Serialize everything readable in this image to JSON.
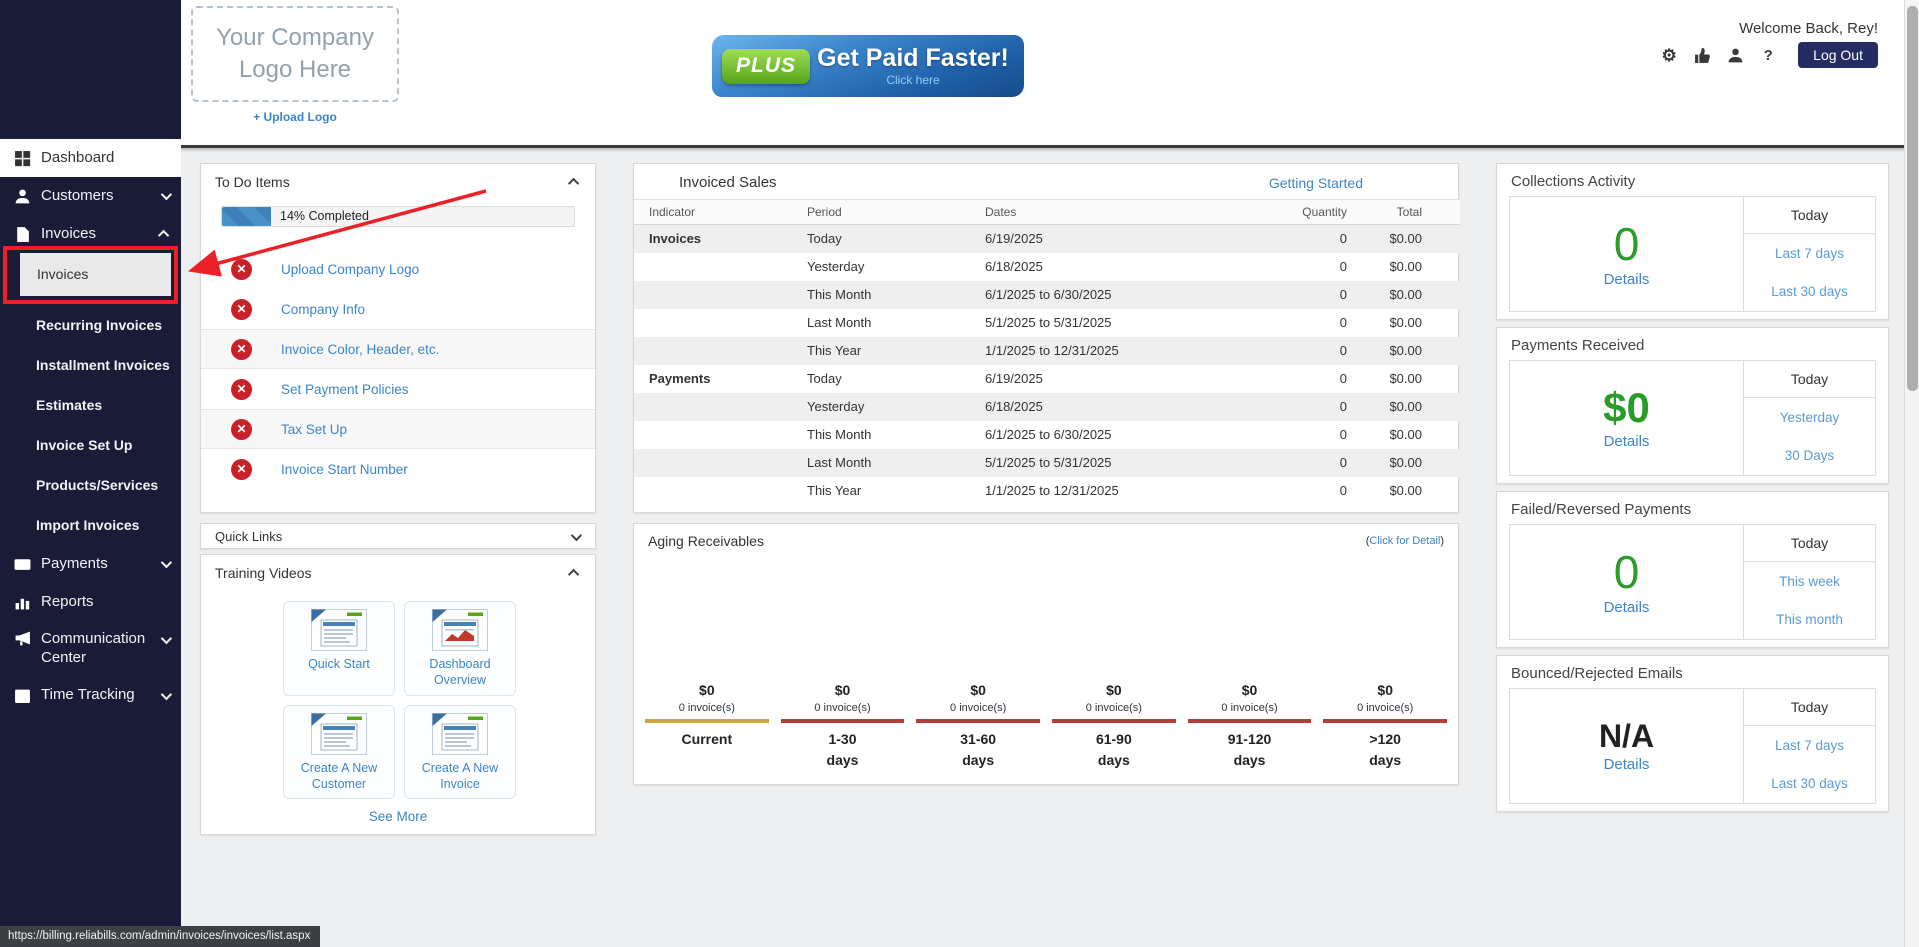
{
  "colors": {
    "sidebar_bg": "#1a1c37",
    "accent_link": "#3d85c6",
    "green_value": "#2a9c2a",
    "red_annotation": "#ec2027",
    "incomplete_icon": "#cb2027",
    "logout_bg": "#252c62",
    "progress_fill": "#4a90c9",
    "aging_current_bar": "#c7a83c",
    "aging_overdue_bar": "#b23f3f",
    "banner_blue": "#1d5ea6",
    "banner_green": "#57a417"
  },
  "status_url": "https://billing.reliabills.com/admin/invoices/invoices/list.aspx",
  "sidebar": {
    "menu": [
      {
        "label": "Dashboard",
        "icon": "dashboard",
        "active": true
      },
      {
        "label": "Customers",
        "icon": "user",
        "chevron": "down"
      },
      {
        "label": "Invoices",
        "icon": "file",
        "chevron": "up"
      },
      {
        "label": "Payments",
        "icon": "card",
        "chevron": "down"
      },
      {
        "label": "Reports",
        "icon": "chart"
      },
      {
        "label": "Communication Center",
        "icon": "megaphone",
        "chevron": "down",
        "wrap": true
      },
      {
        "label": "Time Tracking",
        "icon": "calendar",
        "chevron": "down"
      }
    ],
    "invoices_submenu": {
      "selected_index": 0,
      "items": [
        "Invoices",
        "Recurring Invoices",
        "Installment Invoices",
        "Estimates",
        "Invoice Set Up",
        "Products/Services",
        "Import Invoices"
      ]
    }
  },
  "header": {
    "logo_placeholder": "Your Company Logo Here",
    "upload_logo": "+ Upload Logo",
    "banner": {
      "badge": "PLUS",
      "title": "Get Paid Faster!",
      "subtitle": "Click here"
    },
    "welcome": "Welcome Back, Rey!",
    "tool_icons": [
      "gear",
      "thumbs-up",
      "user",
      "help"
    ],
    "logout": "Log Out"
  },
  "todo": {
    "title": "To Do Items",
    "progress_pct": 14,
    "progress_label": "14% Completed",
    "items": [
      "Upload Company Logo",
      "Company Info",
      "Invoice Color, Header, etc.",
      "Set Payment Policies",
      "Tax Set Up",
      "Invoice Start Number"
    ],
    "alt_rows": [
      2,
      4
    ]
  },
  "quick_links": {
    "title": "Quick Links"
  },
  "training": {
    "title": "Training Videos",
    "videos": [
      {
        "label": "Quick Start",
        "thumb": "page"
      },
      {
        "label": "Dashboard Overview",
        "thumb": "chart"
      },
      {
        "label": "Create A New Customer",
        "thumb": "page"
      },
      {
        "label": "Create A New Invoice",
        "thumb": "page"
      }
    ],
    "see_more": "See More"
  },
  "invoiced_sales": {
    "title": "Invoiced Sales",
    "link": "Getting Started",
    "columns": [
      "Indicator",
      "Period",
      "Dates",
      "Quantity",
      "Total"
    ],
    "rows": [
      {
        "indicator": "Invoices",
        "period": "Today",
        "dates": "6/19/2025",
        "quantity": "0",
        "total": "$0.00"
      },
      {
        "indicator": "",
        "period": "Yesterday",
        "dates": "6/18/2025",
        "quantity": "0",
        "total": "$0.00"
      },
      {
        "indicator": "",
        "period": "This Month",
        "dates": "6/1/2025 to 6/30/2025",
        "quantity": "0",
        "total": "$0.00"
      },
      {
        "indicator": "",
        "period": "Last Month",
        "dates": "5/1/2025 to 5/31/2025",
        "quantity": "0",
        "total": "$0.00"
      },
      {
        "indicator": "",
        "period": "This Year",
        "dates": "1/1/2025 to 12/31/2025",
        "quantity": "0",
        "total": "$0.00"
      },
      {
        "indicator": "Payments",
        "period": "Today",
        "dates": "6/19/2025",
        "quantity": "0",
        "total": "$0.00"
      },
      {
        "indicator": "",
        "period": "Yesterday",
        "dates": "6/18/2025",
        "quantity": "0",
        "total": "$0.00"
      },
      {
        "indicator": "",
        "period": "This Month",
        "dates": "6/1/2025 to 6/30/2025",
        "quantity": "0",
        "total": "$0.00"
      },
      {
        "indicator": "",
        "period": "Last Month",
        "dates": "5/1/2025 to 5/31/2025",
        "quantity": "0",
        "total": "$0.00"
      },
      {
        "indicator": "",
        "period": "This Year",
        "dates": "1/1/2025 to 12/31/2025",
        "quantity": "0",
        "total": "$0.00"
      }
    ]
  },
  "aging": {
    "title": "Aging Receivables",
    "link_wrap_open": "(",
    "link_label": "Click for Detail",
    "link_wrap_close": ")",
    "buckets": [
      {
        "amount": "$0",
        "count": "0 invoice(s)",
        "label": "Current",
        "bar_color": "#c7a83c"
      },
      {
        "amount": "$0",
        "count": "0 invoice(s)",
        "label": "1-30\ndays",
        "bar_color": "#b23f3f"
      },
      {
        "amount": "$0",
        "count": "0 invoice(s)",
        "label": "31-60\ndays",
        "bar_color": "#b23f3f"
      },
      {
        "amount": "$0",
        "count": "0 invoice(s)",
        "label": "61-90\ndays",
        "bar_color": "#b23f3f"
      },
      {
        "amount": "$0",
        "count": "0 invoice(s)",
        "label": "91-120\ndays",
        "bar_color": "#b23f3f"
      },
      {
        "amount": "$0",
        "count": "0 invoice(s)",
        "label": ">120\ndays",
        "bar_color": "#b23f3f"
      }
    ]
  },
  "stats": [
    {
      "title": "Collections Activity",
      "value": "0",
      "value_style": "plain",
      "details": "Details",
      "tabs": [
        "Today",
        "Last 7 days",
        "Last 30 days"
      ]
    },
    {
      "title": "Payments Received",
      "value": "$0",
      "value_style": "money",
      "details": "Details",
      "tabs": [
        "Today",
        "Yesterday",
        "30 Days"
      ]
    },
    {
      "title": "Failed/Reversed Payments",
      "value": "0",
      "value_style": "plain",
      "details": "Details",
      "tabs": [
        "Today",
        "This week",
        "This month"
      ]
    },
    {
      "title": "Bounced/Rejected Emails",
      "value": "N/A",
      "value_style": "na",
      "details": "Details",
      "tabs": [
        "Today",
        "Last 7 days",
        "Last 30 days"
      ]
    }
  ]
}
